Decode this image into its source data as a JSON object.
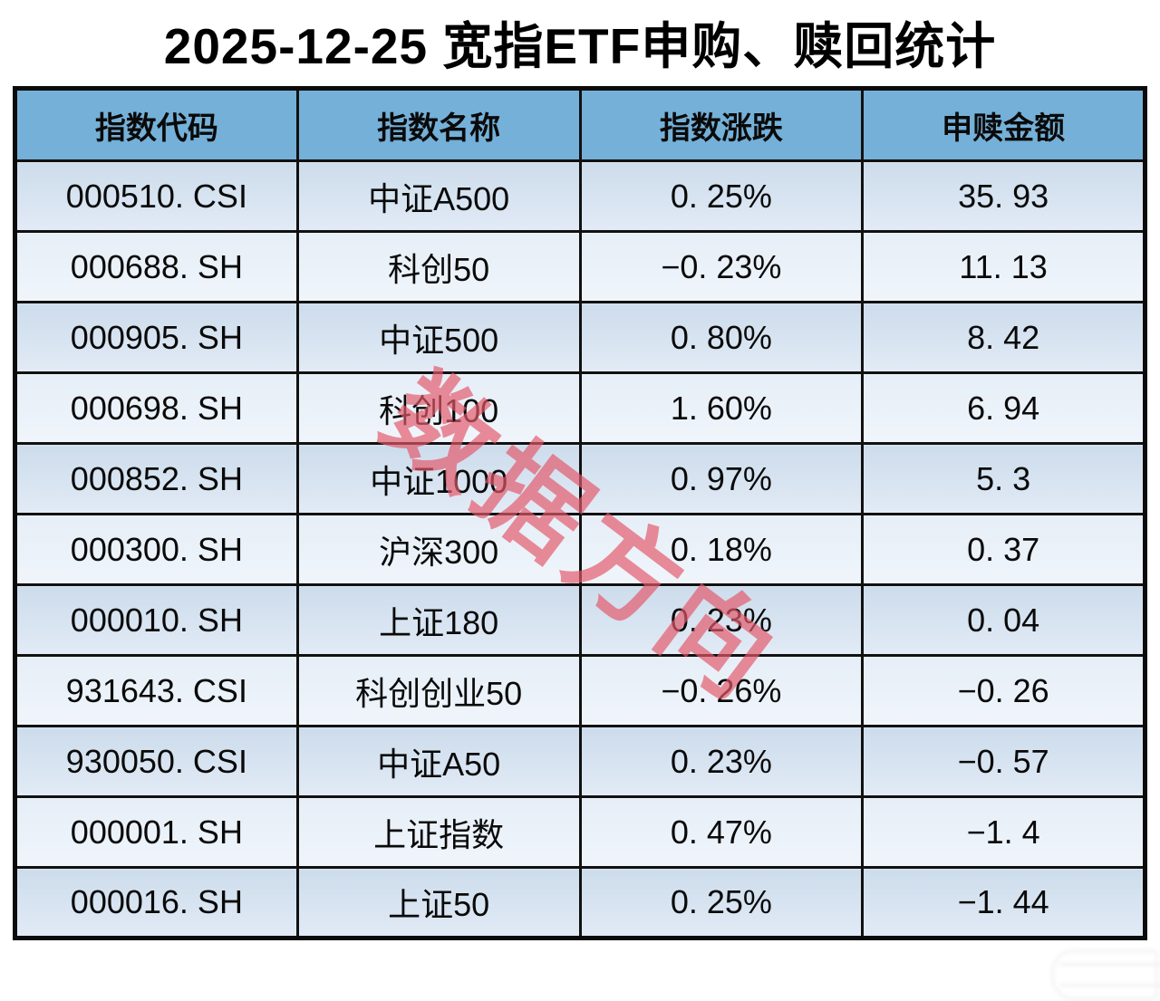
{
  "title": "2025-12-25 宽指ETF申购、赎回统计",
  "table": {
    "headers": {
      "code": "指数代码",
      "name": "指数名称",
      "change": "指数涨跌",
      "amount": "申赎金额"
    },
    "rows": [
      {
        "code": "000510. CSI",
        "name": "中证A500",
        "change": "0. 25%",
        "amount": "35. 93"
      },
      {
        "code": "000688. SH",
        "name": "科创50",
        "change": "−0. 23%",
        "amount": "11. 13"
      },
      {
        "code": "000905. SH",
        "name": "中证500",
        "change": "0. 80%",
        "amount": "8. 42"
      },
      {
        "code": "000698. SH",
        "name": "科创100",
        "change": "1. 60%",
        "amount": "6. 94"
      },
      {
        "code": "000852. SH",
        "name": "中证1000",
        "change": "0. 97%",
        "amount": "5. 3"
      },
      {
        "code": "000300. SH",
        "name": "沪深300",
        "change": "0. 18%",
        "amount": "0. 37"
      },
      {
        "code": "000010. SH",
        "name": "上证180",
        "change": "0. 23%",
        "amount": "0. 04"
      },
      {
        "code": "931643. CSI",
        "name": "科创创业50",
        "change": "−0. 26%",
        "amount": "−0. 26"
      },
      {
        "code": "930050. CSI",
        "name": "中证A50",
        "change": "0. 23%",
        "amount": "−0. 57"
      },
      {
        "code": "000001. SH",
        "name": "上证指数",
        "change": "0. 47%",
        "amount": "−1. 4"
      },
      {
        "code": "000016. SH",
        "name": "上证50",
        "change": "0. 25%",
        "amount": "−1. 44"
      }
    ]
  },
  "watermark": {
    "text": "数据方向",
    "color": "#e4586a"
  },
  "colors": {
    "header_bg": "#74b0d8",
    "row_odd": "#d3e1ef",
    "row_even": "#e8f0f8",
    "border": "#000000",
    "title_text": "#000000"
  },
  "chart_data": {
    "type": "table",
    "title": "2025-12-25 宽指ETF申购、赎回统计",
    "columns": [
      "指数代码",
      "指数名称",
      "指数涨跌(%)",
      "申赎金额"
    ],
    "rows": [
      [
        "000510.CSI",
        "中证A500",
        0.25,
        35.93
      ],
      [
        "000688.SH",
        "科创50",
        -0.23,
        11.13
      ],
      [
        "000905.SH",
        "中证500",
        0.8,
        8.42
      ],
      [
        "000698.SH",
        "科创100",
        1.6,
        6.94
      ],
      [
        "000852.SH",
        "中证1000",
        0.97,
        5.3
      ],
      [
        "000300.SH",
        "沪深300",
        0.18,
        0.37
      ],
      [
        "000010.SH",
        "上证180",
        0.23,
        0.04
      ],
      [
        "931643.CSI",
        "科创创业50",
        -0.26,
        -0.26
      ],
      [
        "930050.CSI",
        "中证A50",
        0.23,
        -0.57
      ],
      [
        "000001.SH",
        "上证指数",
        0.47,
        -1.4
      ],
      [
        "000016.SH",
        "上证50",
        0.25,
        -1.44
      ]
    ]
  }
}
